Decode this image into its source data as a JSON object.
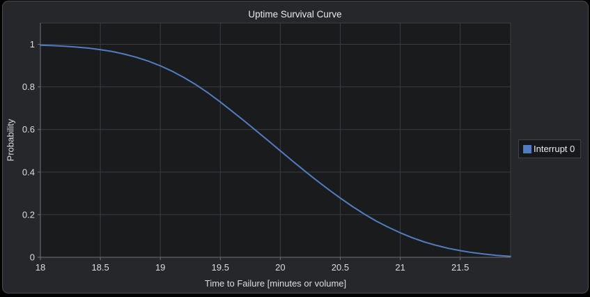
{
  "window": {
    "background": "#26272b"
  },
  "chart_data": {
    "type": "line",
    "title": "Uptime Survival Curve",
    "xlabel": "Time to Failure [minutes or volume]",
    "ylabel": "Probability",
    "xlim": [
      18,
      21.92
    ],
    "ylim": [
      0,
      1.1
    ],
    "xticks": [
      18,
      18.5,
      19,
      19.5,
      20,
      20.5,
      21,
      21.5
    ],
    "yticks": [
      0,
      0.2,
      0.4,
      0.6,
      0.8,
      1
    ],
    "grid": true,
    "legend_position": "right",
    "series": [
      {
        "name": "Interrupt 0",
        "color": "#527cc2",
        "x": [
          18.0,
          18.1,
          18.2,
          18.3,
          18.4,
          18.5,
          18.6,
          18.7,
          18.8,
          18.9,
          19.0,
          19.1,
          19.2,
          19.3,
          19.4,
          19.5,
          19.6,
          19.7,
          19.8,
          19.9,
          20.0,
          20.1,
          20.2,
          20.3,
          20.4,
          20.5,
          20.6,
          20.7,
          20.8,
          20.9,
          21.0,
          21.1,
          21.2,
          21.3,
          21.4,
          21.5,
          21.6,
          21.7,
          21.8,
          21.9,
          21.92
        ],
        "y": [
          0.996,
          0.994,
          0.991,
          0.987,
          0.982,
          0.975,
          0.966,
          0.954,
          0.939,
          0.921,
          0.899,
          0.873,
          0.843,
          0.809,
          0.771,
          0.729,
          0.685,
          0.64,
          0.594,
          0.547,
          0.5,
          0.453,
          0.407,
          0.362,
          0.319,
          0.278,
          0.239,
          0.203,
          0.17,
          0.141,
          0.115,
          0.092,
          0.072,
          0.056,
          0.042,
          0.031,
          0.022,
          0.015,
          0.009,
          0.005,
          0.004
        ]
      }
    ],
    "colors": {
      "figure_bg": "#26272b",
      "plot_bg": "#1a1b1d",
      "grid": "#3a3c3f",
      "frame": "#3d3f43",
      "axis": "#6e7074",
      "text": "#dcdde0",
      "legend_bg": "#17181b",
      "legend_border": "#404247"
    }
  }
}
